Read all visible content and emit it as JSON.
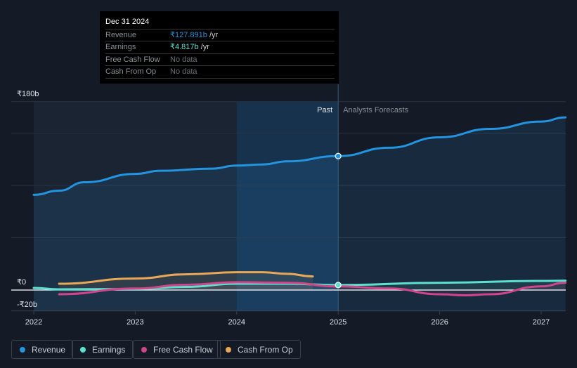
{
  "tooltip": {
    "date": "Dec 31 2024",
    "rows": [
      {
        "label": "Revenue",
        "value": "₹127.891b",
        "unit": " /yr",
        "color": "#2394df"
      },
      {
        "label": "Earnings",
        "value": "₹4.817b",
        "unit": " /yr",
        "color": "#5ee0d1"
      },
      {
        "label": "Free Cash Flow",
        "value": "No data",
        "unit": "",
        "color": "#6b7078"
      },
      {
        "label": "Cash From Op",
        "value": "No data",
        "unit": "",
        "color": "#6b7078"
      }
    ]
  },
  "labels": {
    "past": "Past",
    "forecast": "Analysts Forecasts"
  },
  "legend": [
    {
      "label": "Revenue",
      "color": "#2394df"
    },
    {
      "label": "Earnings",
      "color": "#5ee0d1"
    },
    {
      "label": "Free Cash Flow",
      "color": "#d0468a"
    },
    {
      "label": "Cash From Op",
      "color": "#e8a857"
    }
  ],
  "chart_data": {
    "type": "line",
    "ylim": [
      -20,
      180
    ],
    "xlim": [
      2021.8,
      2027.24
    ],
    "y_ticks": [
      {
        "v": 180,
        "label": "₹180b"
      },
      {
        "v": 0,
        "label": "₹0"
      },
      {
        "v": -20,
        "label": "-₹20b"
      }
    ],
    "x_ticks": [
      {
        "v": 2022,
        "label": "2022"
      },
      {
        "v": 2023,
        "label": "2023"
      },
      {
        "v": 2024,
        "label": "2024"
      },
      {
        "v": 2025,
        "label": "2025"
      },
      {
        "v": 2026,
        "label": "2026"
      },
      {
        "v": 2027,
        "label": "2027"
      }
    ],
    "past_end": 2025,
    "highlight_start": 2024,
    "series": [
      {
        "name": "Revenue",
        "color": "#2394df",
        "fill": true,
        "points": [
          [
            2022,
            91
          ],
          [
            2022.25,
            95
          ],
          [
            2022.5,
            103
          ],
          [
            2023,
            111
          ],
          [
            2023.25,
            114
          ],
          [
            2023.75,
            116
          ],
          [
            2024,
            119
          ],
          [
            2024.25,
            120
          ],
          [
            2024.5,
            123
          ],
          [
            2025,
            128
          ],
          [
            2025.5,
            136
          ],
          [
            2026,
            146
          ],
          [
            2026.5,
            154
          ],
          [
            2027,
            161
          ],
          [
            2027.24,
            165
          ]
        ]
      },
      {
        "name": "Earnings",
        "color": "#5ee0d1",
        "points": [
          [
            2022,
            2
          ],
          [
            2022.25,
            0.7
          ],
          [
            2023,
            1
          ],
          [
            2023.5,
            3
          ],
          [
            2024,
            6
          ],
          [
            2024.5,
            6
          ],
          [
            2025,
            4.8
          ],
          [
            2026,
            7
          ],
          [
            2027,
            8.7
          ],
          [
            2027.24,
            9
          ]
        ]
      },
      {
        "name": "Free Cash Flow",
        "color": "#d0468a",
        "points": [
          [
            2022.25,
            -4
          ],
          [
            2023,
            1.5
          ],
          [
            2023.5,
            5
          ],
          [
            2024,
            7.5
          ],
          [
            2024.5,
            7
          ],
          [
            2025,
            3.5
          ],
          [
            2025.5,
            1.5
          ],
          [
            2026,
            -4
          ],
          [
            2026.25,
            -5
          ],
          [
            2026.5,
            -4
          ],
          [
            2027,
            3.5
          ],
          [
            2027.24,
            7
          ]
        ]
      },
      {
        "name": "Cash From Op",
        "color": "#e8a857",
        "points": [
          [
            2022.25,
            6
          ],
          [
            2023,
            11
          ],
          [
            2023.5,
            15
          ],
          [
            2024,
            17
          ],
          [
            2024.25,
            17
          ],
          [
            2024.5,
            15.5
          ],
          [
            2024.75,
            13
          ]
        ]
      }
    ]
  }
}
